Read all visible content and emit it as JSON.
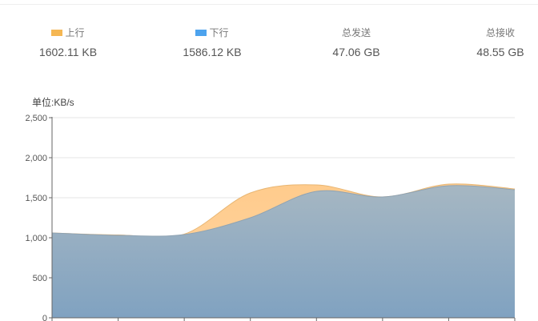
{
  "stats": {
    "upload": {
      "label": "上行",
      "value": "1602.11 KB",
      "color": "#f5b753"
    },
    "download": {
      "label": "下行",
      "value": "1586.12 KB",
      "color": "#4da3ee"
    },
    "sent": {
      "label": "总发送",
      "value": "47.06 GB"
    },
    "received": {
      "label": "总接收",
      "value": "48.55 GB"
    }
  },
  "chart_data": {
    "type": "area",
    "ylabel": "单位:KB/s",
    "ylim": [
      0,
      2500
    ],
    "yticks": [
      "0",
      "500",
      "1,000",
      "1,500",
      "2,000",
      "2,500"
    ],
    "grid": true,
    "legend": "top",
    "series": [
      {
        "name": "上行",
        "color": "#ffcc8a",
        "values": [
          1060,
          1035,
          1045,
          1560,
          1660,
          1510,
          1670,
          1610
        ]
      },
      {
        "name": "下行",
        "color": "#7fa2c0",
        "values": [
          1060,
          1030,
          1040,
          1250,
          1580,
          1510,
          1650,
          1600
        ]
      }
    ]
  }
}
